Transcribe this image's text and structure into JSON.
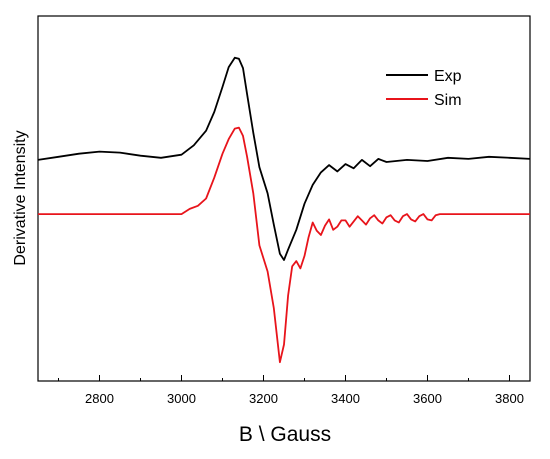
{
  "chart_data": {
    "type": "line",
    "xlabel": "B \\ Gauss",
    "ylabel": "Derivative Intensity",
    "xlim": [
      2650,
      3850
    ],
    "ylim": [
      -1.6,
      1.9
    ],
    "xticks": [
      2800,
      3000,
      3200,
      3400,
      3600,
      3800
    ],
    "y_tick_labels_shown": false,
    "grid": false,
    "legend_position": "top-right",
    "series": [
      {
        "name": "Exp",
        "color": "#000000",
        "x": [
          2650,
          2700,
          2750,
          2800,
          2850,
          2900,
          2950,
          3000,
          3030,
          3060,
          3080,
          3100,
          3115,
          3130,
          3140,
          3150,
          3160,
          3175,
          3190,
          3210,
          3225,
          3240,
          3250,
          3260,
          3280,
          3300,
          3320,
          3340,
          3360,
          3380,
          3400,
          3420,
          3440,
          3460,
          3480,
          3500,
          3550,
          3600,
          3650,
          3700,
          3750,
          3800,
          3850
        ],
        "y": [
          0.52,
          0.55,
          0.58,
          0.6,
          0.59,
          0.56,
          0.54,
          0.57,
          0.66,
          0.8,
          0.98,
          1.22,
          1.41,
          1.5,
          1.49,
          1.4,
          1.15,
          0.78,
          0.45,
          0.2,
          -0.1,
          -0.38,
          -0.44,
          -0.34,
          -0.15,
          0.1,
          0.28,
          0.4,
          0.47,
          0.41,
          0.48,
          0.44,
          0.52,
          0.46,
          0.53,
          0.5,
          0.52,
          0.51,
          0.54,
          0.53,
          0.55,
          0.54,
          0.53
        ]
      },
      {
        "name": "Sim",
        "color": "#e8141b",
        "x": [
          2650,
          3000,
          3020,
          3040,
          3060,
          3080,
          3100,
          3115,
          3130,
          3140,
          3150,
          3160,
          3175,
          3190,
          3210,
          3225,
          3240,
          3250,
          3260,
          3270,
          3280,
          3290,
          3300,
          3310,
          3320,
          3330,
          3340,
          3350,
          3360,
          3370,
          3380,
          3390,
          3400,
          3410,
          3420,
          3430,
          3440,
          3450,
          3460,
          3470,
          3480,
          3490,
          3500,
          3510,
          3520,
          3530,
          3540,
          3550,
          3560,
          3570,
          3580,
          3590,
          3600,
          3610,
          3620,
          3630,
          3640,
          3700,
          3850
        ],
        "y": [
          0.0,
          0.0,
          0.05,
          0.08,
          0.15,
          0.35,
          0.58,
          0.72,
          0.82,
          0.83,
          0.75,
          0.55,
          0.2,
          -0.3,
          -0.55,
          -0.9,
          -1.42,
          -1.25,
          -0.78,
          -0.5,
          -0.45,
          -0.52,
          -0.4,
          -0.22,
          -0.08,
          -0.16,
          -0.2,
          -0.11,
          -0.05,
          -0.15,
          -0.12,
          -0.06,
          -0.06,
          -0.12,
          -0.07,
          -0.02,
          -0.06,
          -0.1,
          -0.04,
          -0.01,
          -0.06,
          -0.09,
          -0.03,
          -0.01,
          -0.06,
          -0.08,
          -0.02,
          0.0,
          -0.05,
          -0.07,
          -0.02,
          0.0,
          -0.05,
          -0.06,
          -0.01,
          0.0,
          0.0,
          0.0,
          0.0
        ]
      }
    ]
  }
}
